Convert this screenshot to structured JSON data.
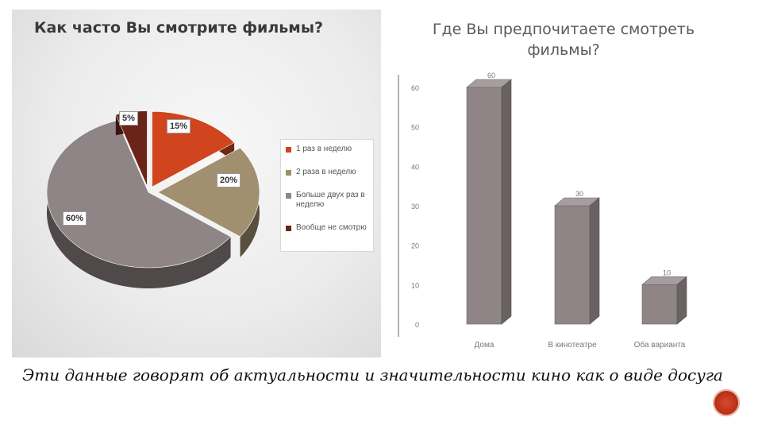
{
  "caption": "Эти данные говорят об актуальности и значительности кино как о виде досуга",
  "chart_data": [
    {
      "type": "pie",
      "title": "Как часто Вы смотрите фильмы?",
      "categories": [
        "1 раз в неделю",
        "2 раза в неделю",
        "Больше двух раз в неделю",
        "Вообще не смотрю"
      ],
      "values": [
        15,
        20,
        60,
        5
      ],
      "value_labels": [
        "15%",
        "20%",
        "60%",
        "5%"
      ],
      "colors": [
        "#d1451e",
        "#a0906f",
        "#8f8587",
        "#6b2418"
      ],
      "legend_position": "right"
    },
    {
      "type": "bar",
      "title": "Где Вы предпочитаете смотреть фильмы?",
      "categories": [
        "Дома",
        "В кинотеатре",
        "Оба варианта"
      ],
      "values": [
        60,
        30,
        10
      ],
      "ylim": [
        0,
        60
      ],
      "yticks": [
        0,
        10,
        20,
        30,
        40,
        50,
        60
      ],
      "color": "#8f8587",
      "grid": false
    }
  ]
}
